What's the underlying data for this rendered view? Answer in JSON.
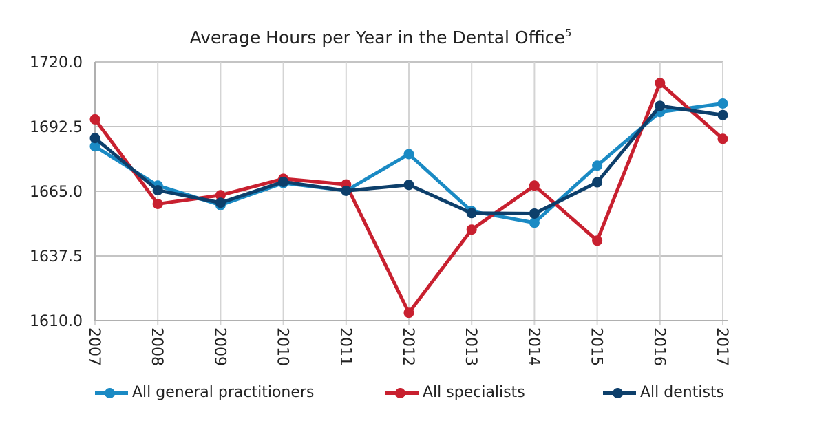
{
  "chart_data": {
    "type": "line",
    "title": "Average Hours per Year in the Dental Office",
    "title_superscript": "5",
    "xlabel": "",
    "ylabel": "",
    "x": [
      "2007",
      "2008",
      "2009",
      "2010",
      "2011",
      "2012",
      "2013",
      "2014",
      "2015",
      "2016",
      "2017"
    ],
    "ylim": [
      1610,
      1720
    ],
    "yticks": [
      "1720.0",
      "1692.5",
      "1665.0",
      "1637.5",
      "1610.0"
    ],
    "ytick_values": [
      1720,
      1692.5,
      1665,
      1637.5,
      1610
    ],
    "grid": true,
    "legend_position": "bottom",
    "series": [
      {
        "name": "All general practitioners",
        "color": "#1a8ac4",
        "values": [
          1684.1,
          1667.4,
          1659.1,
          1668.5,
          1665.2,
          1680.8,
          1656.5,
          1651.6,
          1675.9,
          1698.7,
          1702.3
        ]
      },
      {
        "name": "All specialists",
        "color": "#c8202f",
        "values": [
          1695.6,
          1659.6,
          1663.3,
          1670.3,
          1667.9,
          1613.3,
          1648.7,
          1667.4,
          1644.0,
          1711.0,
          1687.3
        ]
      },
      {
        "name": "All dentists",
        "color": "#0d3f6b",
        "values": [
          1687.6,
          1665.4,
          1660.1,
          1669.0,
          1665.2,
          1667.7,
          1655.7,
          1655.5,
          1668.8,
          1701.3,
          1697.4
        ]
      }
    ]
  }
}
